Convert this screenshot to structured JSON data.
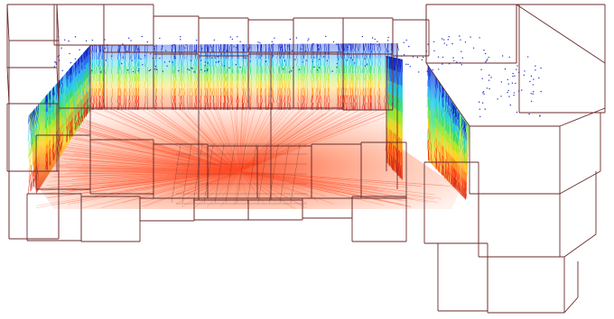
{
  "scene": {
    "description_visible_text": "",
    "colormap": [
      "#0a1dc8",
      "#1e6cf0",
      "#13c8e6",
      "#2fdc6c",
      "#a7e81c",
      "#ffd21a",
      "#ff8a12",
      "#ff3b12",
      "#e02a14"
    ],
    "floor_color": "#ff4416",
    "wire_color": "#6b2b2b",
    "grid_color": "#3a1a1a",
    "background": "#ffffff"
  }
}
